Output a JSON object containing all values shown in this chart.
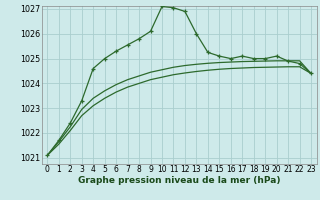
{
  "x": [
    0,
    1,
    2,
    3,
    4,
    5,
    6,
    7,
    8,
    9,
    10,
    11,
    12,
    13,
    14,
    15,
    16,
    17,
    18,
    19,
    20,
    21,
    22,
    23
  ],
  "y_main": [
    1021.1,
    1021.7,
    1022.4,
    1023.3,
    1024.6,
    1025.0,
    1025.3,
    1025.55,
    1025.8,
    1026.1,
    1027.1,
    1027.05,
    1026.9,
    1026.0,
    1025.25,
    1025.1,
    1025.0,
    1025.1,
    1025.0,
    1025.0,
    1025.1,
    1024.9,
    1024.8,
    1024.4
  ],
  "y_lower": [
    1021.1,
    1021.55,
    1022.1,
    1022.7,
    1023.1,
    1023.4,
    1023.65,
    1023.85,
    1024.0,
    1024.15,
    1024.25,
    1024.35,
    1024.42,
    1024.48,
    1024.53,
    1024.57,
    1024.6,
    1024.62,
    1024.64,
    1024.65,
    1024.66,
    1024.67,
    1024.67,
    1024.4
  ],
  "y_mid": [
    1021.1,
    1021.65,
    1022.25,
    1022.95,
    1023.4,
    1023.7,
    1023.95,
    1024.15,
    1024.3,
    1024.45,
    1024.55,
    1024.65,
    1024.72,
    1024.77,
    1024.81,
    1024.84,
    1024.86,
    1024.88,
    1024.89,
    1024.9,
    1024.91,
    1024.91,
    1024.91,
    1024.4
  ],
  "bg_color": "#ceeaea",
  "grid_color": "#aacece",
  "line_color": "#2d6a2d",
  "ylim_min": 1021,
  "ylim_max": 1027,
  "xlabel": "Graphe pression niveau de la mer (hPa)",
  "xtick_labels": [
    "0",
    "1",
    "2",
    "3",
    "4",
    "5",
    "6",
    "7",
    "8",
    "9",
    "10",
    "11",
    "12",
    "13",
    "14",
    "15",
    "16",
    "17",
    "18",
    "19",
    "20",
    "21",
    "22",
    "23"
  ],
  "yticks": [
    1021,
    1022,
    1023,
    1024,
    1025,
    1026,
    1027
  ],
  "title_fontsize": 6.5,
  "tick_fontsize": 5.5,
  "xlabel_fontsize": 6.5
}
